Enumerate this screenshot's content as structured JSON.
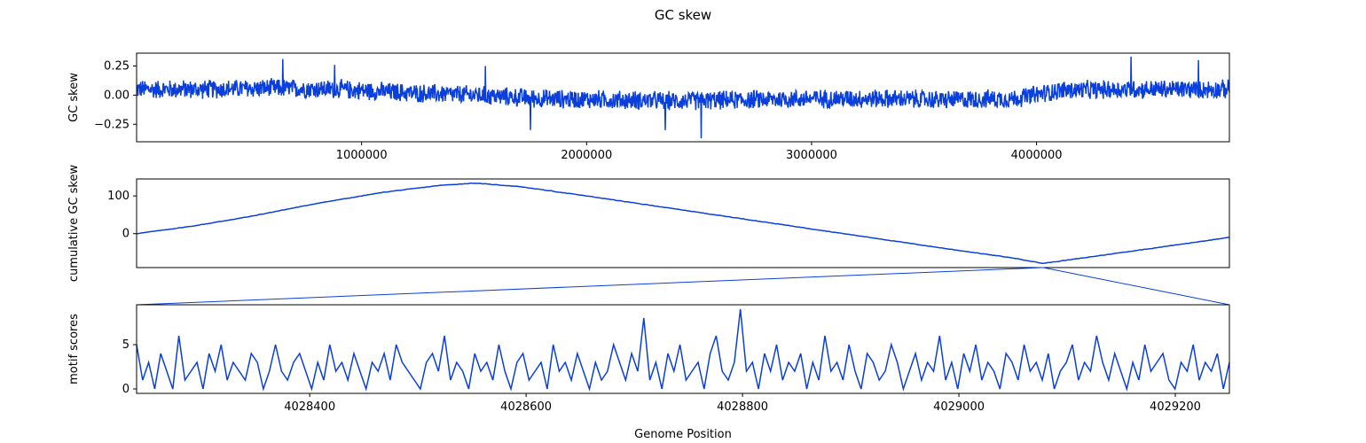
{
  "figure": {
    "title": "GC skew",
    "xlabel": "Genome Position"
  },
  "colors": {
    "line": "#0a3fdc",
    "connector": "#0a3fdc",
    "frame": "#000000"
  },
  "chart_data": [
    {
      "type": "line",
      "title": "",
      "ylabel": "GC skew",
      "xlim": [
        0,
        4857000
      ],
      "ylim": [
        -0.4,
        0.36
      ],
      "xticks": [
        1000000,
        2000000,
        3000000,
        4000000
      ],
      "xtick_labels": [
        "1000000",
        "2000000",
        "3000000",
        "4000000"
      ],
      "yticks": [
        0.25,
        0.0,
        -0.25
      ],
      "ytick_labels": [
        "0.25",
        "0.00",
        "−0.25"
      ],
      "series": [
        {
          "values_description_points": [
            [
              0,
              0.05
            ],
            [
              300000,
              0.05
            ],
            [
              600000,
              0.06
            ],
            [
              900000,
              0.05
            ],
            [
              1200000,
              0.02
            ],
            [
              1500000,
              0.0
            ],
            [
              1800000,
              -0.03
            ],
            [
              2100000,
              -0.04
            ],
            [
              2400000,
              -0.05
            ],
            [
              2700000,
              -0.04
            ],
            [
              3000000,
              -0.03
            ],
            [
              3300000,
              -0.03
            ],
            [
              3600000,
              -0.04
            ],
            [
              3900000,
              -0.03
            ],
            [
              4100000,
              0.04
            ],
            [
              4400000,
              0.05
            ],
            [
              4857000,
              0.05
            ]
          ],
          "noise_amplitude": 0.09,
          "spikes": [
            [
              650000,
              0.31
            ],
            [
              880000,
              0.26
            ],
            [
              1550000,
              0.25
            ],
            [
              1750000,
              -0.3
            ],
            [
              2350000,
              -0.3
            ],
            [
              2510000,
              -0.37
            ],
            [
              4420000,
              0.33
            ],
            [
              4720000,
              0.3
            ]
          ]
        }
      ]
    },
    {
      "type": "line",
      "title": "",
      "ylabel": "cumulative GC skew",
      "xlim": [
        0,
        4857000
      ],
      "ylim": [
        -90,
        145
      ],
      "xticks": [],
      "yticks": [
        100,
        0
      ],
      "ytick_labels": [
        "100",
        "0"
      ],
      "series": [
        {
          "points": [
            [
              0,
              0
            ],
            [
              250000,
              20
            ],
            [
              500000,
              45
            ],
            [
              800000,
              80
            ],
            [
              1100000,
              110
            ],
            [
              1350000,
              128
            ],
            [
              1500000,
              134
            ],
            [
              1700000,
              125
            ],
            [
              2000000,
              100
            ],
            [
              2400000,
              65
            ],
            [
              2800000,
              30
            ],
            [
              3200000,
              -5
            ],
            [
              3600000,
              -40
            ],
            [
              3900000,
              -65
            ],
            [
              4028000,
              -79
            ],
            [
              4200000,
              -65
            ],
            [
              4500000,
              -40
            ],
            [
              4857000,
              -10
            ]
          ]
        }
      ]
    },
    {
      "type": "line",
      "title": "",
      "ylabel": "motif scores",
      "xlim": [
        4028240,
        4029250
      ],
      "ylim": [
        -0.5,
        9.5
      ],
      "xticks": [
        4028400,
        4028600,
        4028800,
        4029000,
        4029200
      ],
      "xtick_labels": [
        "4028400",
        "4028600",
        "4028800",
        "4029000",
        "4029200"
      ],
      "yticks": [
        5,
        0
      ],
      "ytick_labels": [
        "5",
        "0"
      ],
      "series": [
        {
          "values": [
            5,
            1,
            3,
            0,
            4,
            2,
            0,
            6,
            1,
            2,
            3,
            0,
            4,
            2,
            5,
            1,
            3,
            2,
            1,
            4,
            3,
            0,
            2,
            5,
            2,
            1,
            3,
            4,
            2,
            0,
            3,
            1,
            5,
            2,
            3,
            1,
            4,
            2,
            0,
            3,
            2,
            4,
            1,
            5,
            3,
            2,
            1,
            0,
            3,
            4,
            2,
            6,
            1,
            3,
            2,
            0,
            4,
            2,
            3,
            1,
            5,
            2,
            0,
            3,
            4,
            1,
            2,
            3,
            0,
            5,
            2,
            3,
            1,
            4,
            2,
            0,
            3,
            1,
            2,
            5,
            3,
            1,
            4,
            2,
            8,
            1,
            3,
            0,
            4,
            2,
            5,
            1,
            2,
            3,
            0,
            4,
            6,
            2,
            1,
            3,
            9,
            2,
            3,
            0,
            4,
            2,
            5,
            1,
            3,
            2,
            4,
            0,
            3,
            1,
            6,
            2,
            3,
            1,
            5,
            2,
            0,
            4,
            3,
            1,
            2,
            5,
            3,
            0,
            2,
            4,
            1,
            3,
            2,
            6,
            1,
            3,
            0,
            4,
            2,
            5,
            1,
            3,
            2,
            0,
            4,
            3,
            1,
            5,
            2,
            3,
            1,
            4,
            0,
            2,
            3,
            5,
            1,
            3,
            2,
            6,
            3,
            1,
            4,
            2,
            0,
            3,
            1,
            5,
            2,
            3,
            4,
            1,
            0,
            3,
            2,
            5,
            1,
            3,
            2,
            4,
            0,
            3
          ]
        }
      ],
      "zoom_window": [
        4028240,
        4029250
      ]
    }
  ]
}
